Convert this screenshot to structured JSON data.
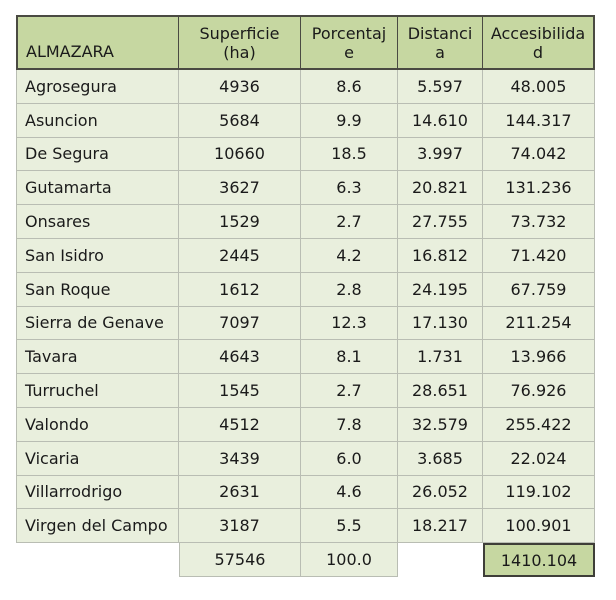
{
  "table": {
    "headers": [
      "ALMAZARA",
      "Superficie (ha)",
      "Porcentaj e",
      "Distanci a",
      "Accesibilida d"
    ],
    "header_lines": [
      [
        "ALMAZARA"
      ],
      [
        "Superficie",
        "(ha)"
      ],
      [
        "Porcentaj",
        "e"
      ],
      [
        "Distanci",
        "a"
      ],
      [
        "Accesibilida",
        "d"
      ]
    ],
    "rows": [
      [
        "Agrosegura",
        "4936",
        "8.6",
        "5.597",
        "48.005"
      ],
      [
        "Asuncion",
        "5684",
        "9.9",
        "14.610",
        "144.317"
      ],
      [
        "De Segura",
        "10660",
        "18.5",
        "3.997",
        "74.042"
      ],
      [
        "Gutamarta",
        "3627",
        "6.3",
        "20.821",
        "131.236"
      ],
      [
        "Onsares",
        "1529",
        "2.7",
        "27.755",
        "73.732"
      ],
      [
        "San Isidro",
        "2445",
        "4.2",
        "16.812",
        "71.420"
      ],
      [
        "San Roque",
        "1612",
        "2.8",
        "24.195",
        "67.759"
      ],
      [
        "Sierra de Genave",
        "7097",
        "12.3",
        "17.130",
        "211.254"
      ],
      [
        "Tavara",
        "4643",
        "8.1",
        "1.731",
        "13.966"
      ],
      [
        "Turruchel",
        "1545",
        "2.7",
        "28.651",
        "76.926"
      ],
      [
        "Valondo",
        "4512",
        "7.8",
        "32.579",
        "255.422"
      ],
      [
        "Vicaria",
        "3439",
        "6.0",
        "3.685",
        "22.024"
      ],
      [
        "Villarrodrigo",
        "2631",
        "4.6",
        "26.052",
        "119.102"
      ],
      [
        "Virgen del Campo",
        "3187",
        "5.5",
        "18.217",
        "100.901"
      ]
    ],
    "totals": {
      "superficie": "57546",
      "porcentaje": "100.0",
      "accesibilidad": "1410.104"
    }
  },
  "colors": {
    "header_bg": "#c6d7a1",
    "row_bg": "#e9efdd",
    "highlight_bg": "#c6d7a1"
  }
}
